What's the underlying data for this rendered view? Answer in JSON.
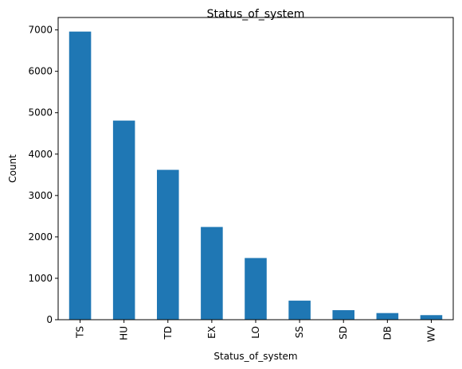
{
  "chart_data": {
    "type": "bar",
    "title": "Status_of_system",
    "xlabel": "Status_of_system",
    "ylabel": "Count",
    "categories": [
      "TS",
      "HU",
      "TD",
      "EX",
      "LO",
      "SS",
      "SD",
      "DB",
      "WV"
    ],
    "values": [
      6960,
      4810,
      3620,
      2240,
      1490,
      460,
      230,
      160,
      110
    ],
    "ylim": [
      0,
      7300
    ],
    "yticks": [
      0,
      1000,
      2000,
      3000,
      4000,
      5000,
      6000,
      7000
    ],
    "grid": false,
    "bar_color": "#1f77b4"
  }
}
